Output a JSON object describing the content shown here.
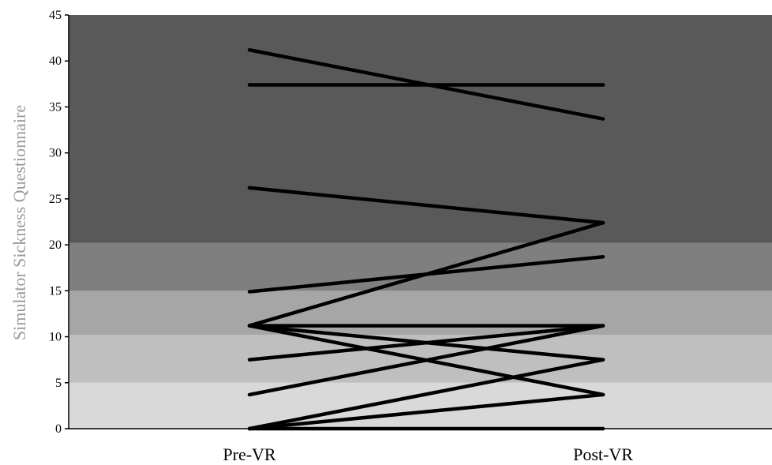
{
  "chart_data": {
    "type": "line",
    "title": "",
    "xlabel": "",
    "ylabel": "Simulator Sickness Questionnaire",
    "categories": [
      "Pre-VR",
      "Post-VR"
    ],
    "ylim": [
      0,
      45
    ],
    "yticks": [
      0,
      5,
      10,
      15,
      20,
      25,
      30,
      35,
      40,
      45
    ],
    "grid": false,
    "background_bands": [
      {
        "from": 0,
        "to": 5,
        "color": "#d9d9d9"
      },
      {
        "from": 5,
        "to": 10.2,
        "color": "#bfbfbf"
      },
      {
        "from": 10.2,
        "to": 15,
        "color": "#a6a6a6"
      },
      {
        "from": 15,
        "to": 20.2,
        "color": "#7f7f7f"
      },
      {
        "from": 20.2,
        "to": 45,
        "color": "#595959"
      }
    ],
    "line_color": "#000000",
    "series": [
      {
        "values": [
          41.2,
          33.7
        ]
      },
      {
        "values": [
          37.4,
          37.4
        ]
      },
      {
        "values": [
          26.2,
          22.4
        ]
      },
      {
        "values": [
          14.9,
          18.7
        ]
      },
      {
        "values": [
          11.2,
          22.4
        ]
      },
      {
        "values": [
          11.2,
          11.2
        ]
      },
      {
        "values": [
          11.2,
          7.5
        ]
      },
      {
        "values": [
          11.2,
          3.7
        ]
      },
      {
        "values": [
          7.5,
          11.2
        ]
      },
      {
        "values": [
          3.7,
          11.2
        ]
      },
      {
        "values": [
          0,
          7.5
        ]
      },
      {
        "values": [
          0,
          3.7
        ]
      },
      {
        "values": [
          0,
          0
        ]
      }
    ]
  }
}
